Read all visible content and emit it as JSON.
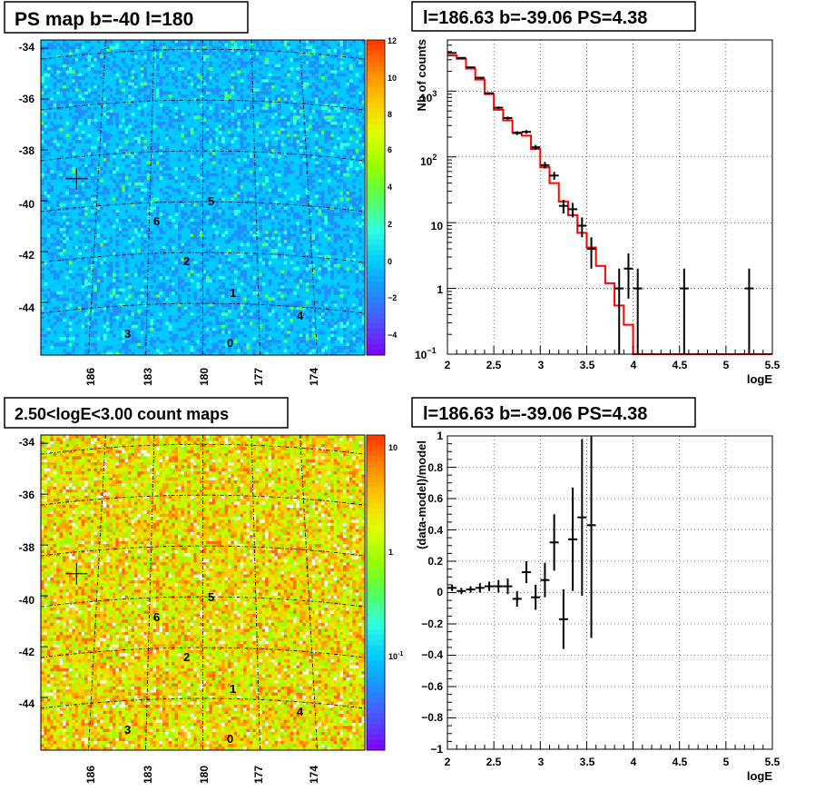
{
  "panels": {
    "ps_map": {
      "title": "PS map b=-40 l=180",
      "y_ticks": [
        "-34",
        "-36",
        "-38",
        "-40",
        "-42",
        "-44"
      ],
      "x_ticks": [
        "186",
        "183",
        "180",
        "177",
        "174"
      ],
      "colorbar_ticks": [
        "12",
        "10",
        "8",
        "6",
        "4",
        "2",
        "0",
        "−2",
        "−4"
      ],
      "sources": [
        "5",
        "6",
        "2",
        "1",
        "4",
        "3",
        "0"
      ]
    },
    "spectrum": {
      "title": "l=186.63 b=-39.06 PS=4.38",
      "ylabel": "Nb of counts",
      "xlabel": "logE",
      "x_ticks": [
        "2",
        "2.5",
        "3",
        "3.5",
        "4",
        "4.5",
        "5",
        "5.5"
      ],
      "y_tick_labels": {
        "t1": "1",
        "t10": "10",
        "e2_base": "10",
        "e2_exp": "2",
        "e3_base": "10",
        "e3_exp": "3",
        "em1_base": "10",
        "em1_exp": "−1"
      }
    },
    "count_map": {
      "title": "2.50<logE<3.00 count maps",
      "y_ticks": [
        "-34",
        "-36",
        "-38",
        "-40",
        "-42",
        "-44"
      ],
      "x_ticks": [
        "186",
        "183",
        "180",
        "177",
        "174"
      ],
      "colorbar_ticks": {
        "ten": "10",
        "one": "1",
        "tenth_base": "10",
        "tenth_exp": "-1"
      },
      "sources": [
        "5",
        "6",
        "2",
        "1",
        "4",
        "3",
        "0"
      ]
    },
    "residual": {
      "title": "l=186.63 b=-39.06 PS=4.38",
      "ylabel": "(data-model)/model",
      "xlabel": "logE",
      "x_ticks": [
        "2",
        "2.5",
        "3",
        "3.5",
        "4",
        "4.5",
        "5",
        "5.5"
      ],
      "y_ticks": [
        "1",
        "0.8",
        "0.6",
        "0.4",
        "0.2",
        "0",
        "−0.2",
        "−0.4",
        "−0.6",
        "−0.8",
        "−1"
      ]
    }
  },
  "chart_data": [
    {
      "type": "heatmap",
      "title": "PS map b=-40 l=180",
      "xlabel": "",
      "ylabel": "",
      "xlim": [
        188.5,
        171.5
      ],
      "ylim": [
        -46,
        -33.6
      ],
      "color_scale": {
        "min": -5,
        "max": 12,
        "background_value": 0.3
      },
      "colormap": [
        "#8000ff",
        "#5050ff",
        "#1e90ff",
        "#00ccff",
        "#33ffdd",
        "#55ff55",
        "#99ff00",
        "#ddff00",
        "#ffcc00",
        "#ff8800",
        "#ff3300"
      ],
      "marker": {
        "label": "+",
        "l": 186.63,
        "b": -39.06
      },
      "sources": [
        {
          "label": "5",
          "l": 179.6,
          "b": -39.9
        },
        {
          "label": "6",
          "l": 182.4,
          "b": -40.6
        },
        {
          "label": "2",
          "l": 180.6,
          "b": -42.2
        },
        {
          "label": "1",
          "l": 178.6,
          "b": -43.5
        },
        {
          "label": "4",
          "l": 175.4,
          "b": -44.3
        },
        {
          "label": "3",
          "l": 184.4,
          "b": -45.1
        },
        {
          "label": "0",
          "l": 178.8,
          "b": -45.4
        }
      ]
    },
    {
      "type": "line",
      "title": "l=186.63 b=-39.06 PS=4.38",
      "xlabel": "logE",
      "ylabel": "Nb of counts",
      "xlim": [
        2,
        5.5
      ],
      "ylim": [
        0.1,
        6000
      ],
      "y_scale": "log",
      "grid": true,
      "series": [
        {
          "name": "data",
          "x": [
            2.05,
            2.15,
            2.25,
            2.35,
            2.45,
            2.55,
            2.65,
            2.75,
            2.85,
            2.95,
            3.05,
            3.15,
            3.25,
            3.35,
            3.45,
            3.55,
            3.85,
            3.95,
            4.05,
            4.55,
            5.25
          ],
          "y": [
            3800,
            3200,
            2300,
            1600,
            930,
            560,
            390,
            230,
            240,
            140,
            75,
            52,
            18,
            16,
            9,
            4,
            1,
            2,
            1,
            1,
            1
          ],
          "y_err_low": [
            62,
            57,
            48,
            40,
            30,
            24,
            20,
            15,
            15,
            12,
            8.7,
            7.2,
            4.2,
            4,
            3,
            2,
            0.9,
            1.3,
            0.9,
            0.9,
            0.9
          ],
          "y_err_high": [
            62,
            57,
            48,
            40,
            30,
            24,
            20,
            15,
            15,
            12,
            8.7,
            7.2,
            4.2,
            4,
            3,
            2,
            1,
            1.4,
            1,
            1,
            1
          ]
        },
        {
          "name": "model",
          "color": "#ff0000",
          "bin_edges": [
            2.0,
            2.1,
            2.2,
            2.3,
            2.4,
            2.5,
            2.6,
            2.7,
            2.8,
            2.9,
            3.0,
            3.1,
            3.2,
            3.3,
            3.4,
            3.5,
            3.6,
            3.7,
            3.8,
            3.9,
            4.0,
            5.5
          ],
          "y": [
            3500,
            3100,
            2200,
            1500,
            900,
            520,
            360,
            235,
            210,
            132,
            70,
            40,
            21,
            13,
            7,
            4.2,
            2.2,
            1.2,
            0.55,
            0.28,
            0.1
          ]
        }
      ]
    },
    {
      "type": "heatmap",
      "title": "2.50<logE<3.00 count maps",
      "xlabel": "",
      "ylabel": "",
      "xlim": [
        188.5,
        171.5
      ],
      "ylim": [
        -46,
        -33.6
      ],
      "color_scale": {
        "log": true,
        "min": 0.03,
        "max": 15,
        "typical_value": 1.2
      },
      "colormap": [
        "#8000ff",
        "#5050ff",
        "#1e90ff",
        "#00ccff",
        "#33ffdd",
        "#55ff55",
        "#99ff00",
        "#ddff00",
        "#ffcc00",
        "#ff8800",
        "#ff3300"
      ],
      "marker": {
        "label": "+",
        "l": 186.63,
        "b": -39.06
      },
      "sources": [
        {
          "label": "5",
          "l": 179.6,
          "b": -39.9
        },
        {
          "label": "6",
          "l": 182.4,
          "b": -40.6
        },
        {
          "label": "2",
          "l": 180.6,
          "b": -42.2
        },
        {
          "label": "1",
          "l": 178.6,
          "b": -43.5
        },
        {
          "label": "4",
          "l": 175.4,
          "b": -44.3
        },
        {
          "label": "3",
          "l": 184.4,
          "b": -45.1
        },
        {
          "label": "0",
          "l": 178.8,
          "b": -45.4
        }
      ]
    },
    {
      "type": "scatter",
      "title": "l=186.63 b=-39.06 PS=4.38",
      "xlabel": "logE",
      "ylabel": "(data-model)/model",
      "xlim": [
        2,
        5.5
      ],
      "ylim": [
        -1,
        1
      ],
      "grid": true,
      "x": [
        2.05,
        2.15,
        2.25,
        2.35,
        2.45,
        2.55,
        2.65,
        2.75,
        2.85,
        2.95,
        3.05,
        3.15,
        3.25,
        3.35,
        3.45,
        3.55
      ],
      "y": [
        0.03,
        0.01,
        0.02,
        0.03,
        0.04,
        0.04,
        0.04,
        -0.04,
        0.13,
        -0.03,
        0.08,
        0.32,
        -0.17,
        0.34,
        0.48,
        0.43
      ],
      "y_err": [
        0.02,
        0.02,
        0.02,
        0.03,
        0.03,
        0.04,
        0.05,
        0.05,
        0.07,
        0.08,
        0.11,
        0.18,
        0.19,
        0.33,
        0.5,
        0.72
      ]
    }
  ]
}
